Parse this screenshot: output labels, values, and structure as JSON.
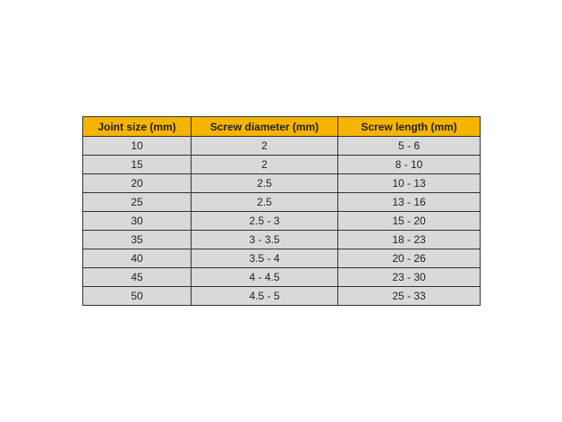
{
  "table": {
    "headers": [
      "Joint size (mm)",
      "Screw diameter (mm)",
      "Screw length (mm)"
    ],
    "rows": [
      [
        "10",
        "2",
        "5 - 6"
      ],
      [
        "15",
        "2",
        "8 - 10"
      ],
      [
        "20",
        "2.5",
        "10 - 13"
      ],
      [
        "25",
        "2.5",
        "13 - 16"
      ],
      [
        "30",
        "2.5 - 3",
        "15 - 20"
      ],
      [
        "35",
        "3 - 3.5",
        "18 - 23"
      ],
      [
        "40",
        "3.5 - 4",
        "20 - 26"
      ],
      [
        "45",
        "4 - 4.5",
        "23 - 30"
      ],
      [
        "50",
        "4.5 - 5",
        "25 - 33"
      ]
    ]
  },
  "colors": {
    "header_background": "#f5b400",
    "row_background": "#d9d9d9",
    "border": "#333333"
  }
}
